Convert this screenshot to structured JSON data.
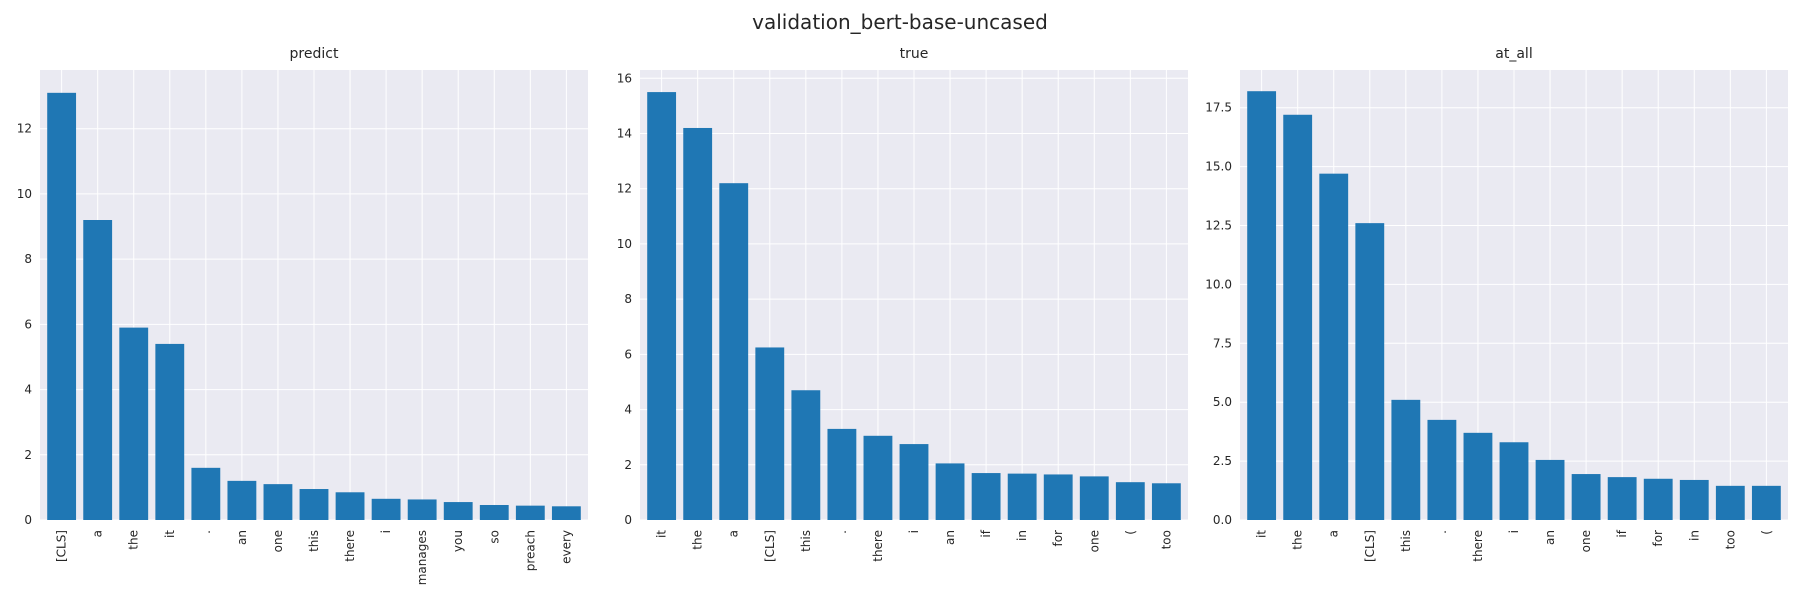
{
  "title": "validation_bert-base-uncased",
  "colors": {
    "bar": "#1f77b4",
    "plot_bg": "#eaeaf2",
    "grid": "#ffffff",
    "text": "#262626"
  },
  "chart_data": [
    {
      "type": "bar",
      "title": "predict",
      "categories": [
        "[CLS]",
        "a",
        "the",
        "it",
        ".",
        "an",
        "one",
        "this",
        "there",
        "i",
        "manages",
        "you",
        "so",
        "preach",
        "every"
      ],
      "values": [
        13.1,
        9.2,
        5.9,
        5.4,
        1.6,
        1.2,
        1.1,
        0.95,
        0.85,
        0.65,
        0.63,
        0.55,
        0.46,
        0.44,
        0.42
      ],
      "ylim": [
        0,
        13.8
      ],
      "yticks": [
        "0",
        "2",
        "4",
        "6",
        "8",
        "10",
        "12"
      ],
      "grid": true
    },
    {
      "type": "bar",
      "title": "true",
      "categories": [
        "it",
        "the",
        "a",
        "[CLS]",
        "this",
        ".",
        "there",
        "i",
        "an",
        "if",
        "in",
        "for",
        "one",
        "(",
        "too"
      ],
      "values": [
        15.5,
        14.2,
        12.2,
        6.25,
        4.7,
        3.3,
        3.05,
        2.75,
        2.05,
        1.7,
        1.68,
        1.65,
        1.58,
        1.37,
        1.33
      ],
      "ylim": [
        0,
        16.3
      ],
      "yticks": [
        "0",
        "2",
        "4",
        "6",
        "8",
        "10",
        "12",
        "14",
        "16"
      ],
      "grid": true
    },
    {
      "type": "bar",
      "title": "at_all",
      "categories": [
        "it",
        "the",
        "a",
        "[CLS]",
        "this",
        ".",
        "there",
        "i",
        "an",
        "one",
        "if",
        "for",
        "in",
        "too",
        "("
      ],
      "values": [
        18.2,
        17.2,
        14.7,
        12.6,
        5.1,
        4.25,
        3.7,
        3.3,
        2.55,
        1.95,
        1.82,
        1.75,
        1.7,
        1.45,
        1.45
      ],
      "ylim": [
        0,
        19.1
      ],
      "yticks": [
        "0.0",
        "2.5",
        "5.0",
        "7.5",
        "10.0",
        "12.5",
        "15.0",
        "17.5"
      ],
      "grid": true
    }
  ]
}
